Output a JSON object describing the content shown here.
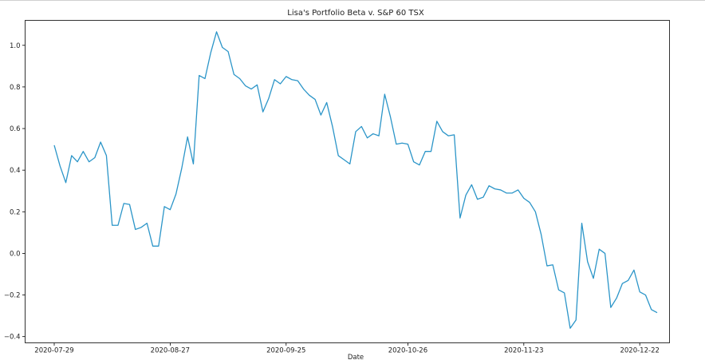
{
  "chart_data": {
    "type": "line",
    "title": "Lisa's Portfolio Beta v. S&P 60 TSX",
    "xlabel": "Date",
    "ylabel": "",
    "x_tick_labels": [
      "2020-07-29",
      "2020-08-27",
      "2020-09-25",
      "2020-10-26",
      "2020-11-23",
      "2020-12-22"
    ],
    "y_tick_labels": [
      "−0.4",
      "−0.2",
      "0.0",
      "0.2",
      "0.4",
      "0.6",
      "0.8",
      "1.0"
    ],
    "y_ticks": [
      -0.4,
      -0.2,
      0.0,
      0.2,
      0.4,
      0.6,
      0.8,
      1.0
    ],
    "ylim": [
      -0.43,
      1.12
    ],
    "grid": false,
    "legend": "none",
    "line_color": "#2b95c8",
    "series": [
      {
        "values": [
          0.52,
          0.42,
          0.34,
          0.47,
          0.44,
          0.49,
          0.44,
          0.46,
          0.535,
          0.47,
          0.135,
          0.135,
          0.24,
          0.235,
          0.115,
          0.125,
          0.145,
          0.035,
          0.035,
          0.225,
          0.21,
          0.285,
          0.41,
          0.56,
          0.43,
          0.855,
          0.84,
          0.965,
          1.065,
          0.99,
          0.97,
          0.86,
          0.84,
          0.805,
          0.79,
          0.81,
          0.68,
          0.745,
          0.835,
          0.815,
          0.85,
          0.835,
          0.83,
          0.79,
          0.76,
          0.74,
          0.665,
          0.725,
          0.61,
          0.47,
          0.45,
          0.43,
          0.585,
          0.61,
          0.555,
          0.575,
          0.565,
          0.765,
          0.655,
          0.525,
          0.53,
          0.525,
          0.44,
          0.425,
          0.49,
          0.49,
          0.635,
          0.585,
          0.565,
          0.57,
          0.17,
          0.28,
          0.33,
          0.26,
          0.27,
          0.325,
          0.31,
          0.305,
          0.29,
          0.29,
          0.305,
          0.265,
          0.245,
          0.2,
          0.09,
          -0.06,
          -0.055,
          -0.175,
          -0.19,
          -0.36,
          -0.32,
          0.145,
          -0.04,
          -0.12,
          0.02,
          0.0,
          -0.26,
          -0.215,
          -0.145,
          -0.13,
          -0.08,
          -0.185,
          -0.2,
          -0.27,
          -0.285
        ]
      }
    ]
  }
}
